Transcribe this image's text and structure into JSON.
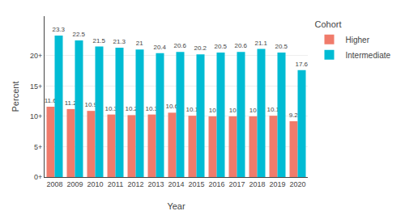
{
  "chart_data": {
    "type": "bar",
    "categories": [
      "2008",
      "2009",
      "2010",
      "2011",
      "2012",
      "2013",
      "2014",
      "2015",
      "2016",
      "2017",
      "2018",
      "2019",
      "2020"
    ],
    "series": [
      {
        "name": "Higher",
        "color": "#F07B6B",
        "values": [
          11.6,
          11.2,
          10.9,
          10.3,
          10.2,
          10.3,
          10.6,
          10.1,
          10,
          10,
          10,
          10.1,
          9.2
        ]
      },
      {
        "name": "Intermediate",
        "color": "#00BCD4",
        "values": [
          23.3,
          22.5,
          21.5,
          21.3,
          21,
          20.4,
          20.6,
          20.2,
          20.5,
          20.6,
          21.1,
          20.5,
          17.6
        ]
      }
    ],
    "legend_title": "Cohort",
    "xlabel": "Year",
    "ylabel": "Percent",
    "ylim": [
      0,
      26.5
    ],
    "yticks": [
      {
        "value": 0,
        "label": "0+"
      },
      {
        "value": 5,
        "label": "5+"
      },
      {
        "value": 10,
        "label": "10+"
      },
      {
        "value": 15,
        "label": "15+"
      },
      {
        "value": 20,
        "label": "20+"
      }
    ],
    "grid": true,
    "legend": "upper right",
    "data_labels": true
  }
}
